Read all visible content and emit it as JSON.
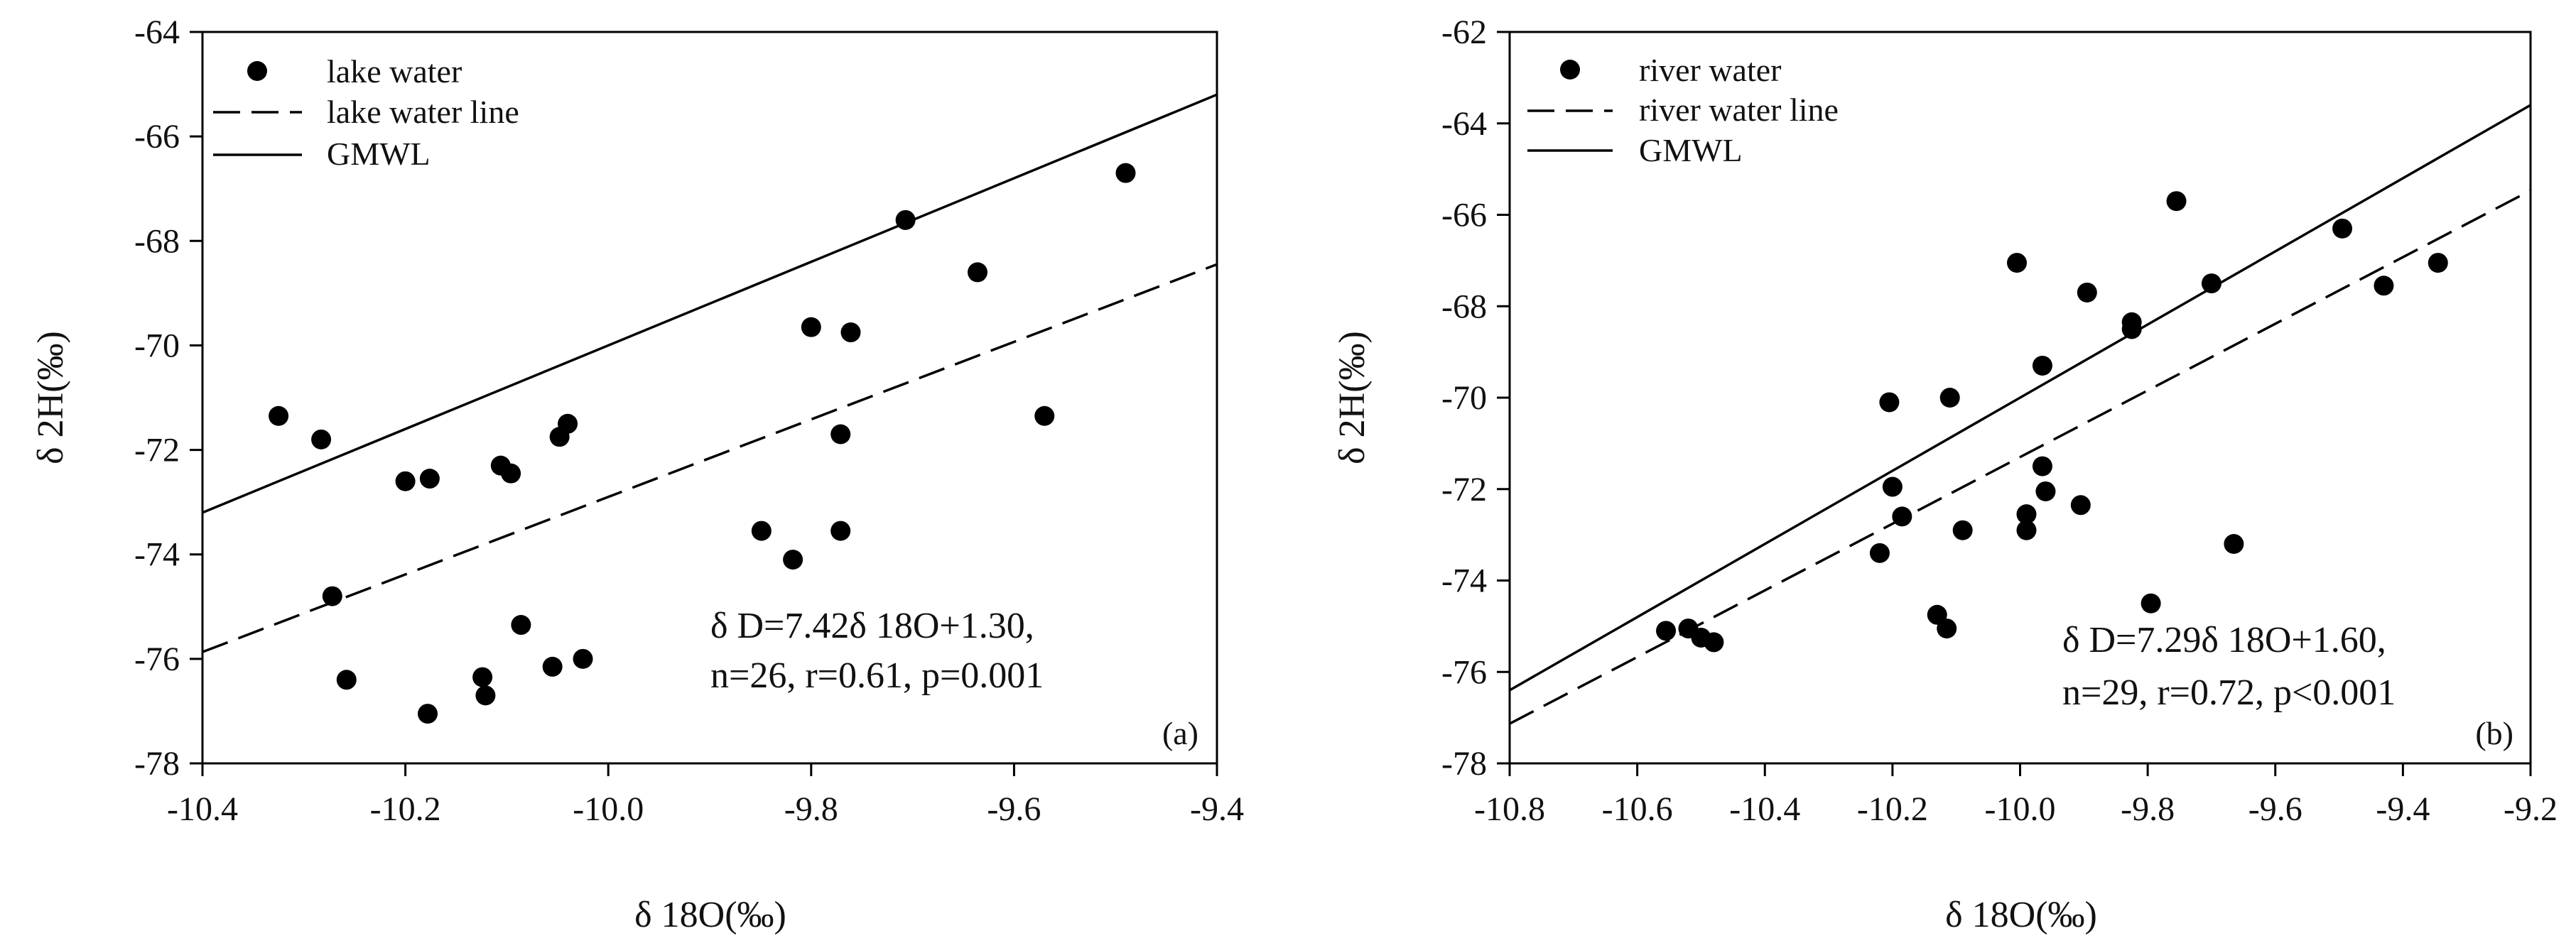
{
  "chart_data": [
    {
      "type": "scatter",
      "panel_label": "(a)",
      "xlabel": "δ 18O(‰)",
      "ylabel": "δ 2H(‰)",
      "xlim": [
        -10.4,
        -9.4
      ],
      "ylim": [
        -78,
        -64
      ],
      "xticks": [
        -10.4,
        -10.2,
        -10.0,
        -9.8,
        -9.6,
        -9.4
      ],
      "xtick_labels": [
        "-10.4",
        "-10.2",
        "-10.0",
        "-9.8",
        "-9.6",
        "-9.4"
      ],
      "yticks": [
        -78,
        -76,
        -74,
        -72,
        -70,
        -68,
        -66,
        -64
      ],
      "ytick_labels": [
        "-78",
        "-76",
        "-74",
        "-72",
        "-70",
        "-68",
        "-66",
        "-64"
      ],
      "legend": [
        "lake water",
        "lake water line",
        "GMWL"
      ],
      "equation_line1": "δ D=7.42δ 18O+1.30,",
      "equation_line2": "n=26, r=0.61, p=0.001",
      "fit_line": {
        "slope": 7.42,
        "intercept": 1.3
      },
      "gmwl": {
        "slope": 8,
        "intercept": 10
      },
      "points": [
        {
          "x": -10.325,
          "y": -71.35
        },
        {
          "x": -10.283,
          "y": -71.8
        },
        {
          "x": -10.272,
          "y": -74.8
        },
        {
          "x": -10.258,
          "y": -76.4
        },
        {
          "x": -10.2,
          "y": -72.6
        },
        {
          "x": -10.178,
          "y": -77.05
        },
        {
          "x": -10.176,
          "y": -72.55
        },
        {
          "x": -10.124,
          "y": -76.35
        },
        {
          "x": -10.121,
          "y": -76.7
        },
        {
          "x": -10.106,
          "y": -72.3
        },
        {
          "x": -10.096,
          "y": -72.45
        },
        {
          "x": -10.086,
          "y": -75.35
        },
        {
          "x": -10.055,
          "y": -76.15
        },
        {
          "x": -10.048,
          "y": -71.75
        },
        {
          "x": -10.04,
          "y": -71.5
        },
        {
          "x": -10.025,
          "y": -76.0
        },
        {
          "x": -9.849,
          "y": -73.55
        },
        {
          "x": -9.818,
          "y": -74.1
        },
        {
          "x": -9.8,
          "y": -69.65
        },
        {
          "x": -9.771,
          "y": -71.7
        },
        {
          "x": -9.771,
          "y": -73.55
        },
        {
          "x": -9.761,
          "y": -69.75
        },
        {
          "x": -9.707,
          "y": -67.6
        },
        {
          "x": -9.636,
          "y": -68.6
        },
        {
          "x": -9.57,
          "y": -71.35
        },
        {
          "x": -9.49,
          "y": -66.7
        }
      ]
    },
    {
      "type": "scatter",
      "panel_label": "(b)",
      "xlabel": "δ 18O(‰)",
      "ylabel": "δ 2H(‰)",
      "xlim": [
        -10.8,
        -9.2
      ],
      "ylim": [
        -78,
        -62
      ],
      "xticks": [
        -10.8,
        -10.6,
        -10.4,
        -10.2,
        -10.0,
        -9.8,
        -9.6,
        -9.4,
        -9.2
      ],
      "xtick_labels": [
        "-10.8",
        "-10.6",
        "-10.4",
        "-10.2",
        "-10.0",
        "-9.8",
        "-9.6",
        "-9.4",
        "-9.2"
      ],
      "yticks": [
        -78,
        -76,
        -74,
        -72,
        -70,
        -68,
        -66,
        -64,
        -62
      ],
      "ytick_labels": [
        "-78",
        "-76",
        "-74",
        "-72",
        "-70",
        "-68",
        "-66",
        "-64",
        "-62"
      ],
      "legend": [
        "river water",
        "river water line",
        "GMWL"
      ],
      "equation_line1": "δ D=7.29δ 18O+1.60,",
      "equation_line2": "n=29, r=0.72, p<0.001",
      "fit_line": {
        "slope": 7.29,
        "intercept": 1.6
      },
      "gmwl": {
        "slope": 8,
        "intercept": 10
      },
      "points": [
        {
          "x": -10.555,
          "y": -75.1
        },
        {
          "x": -10.52,
          "y": -75.05
        },
        {
          "x": -10.5,
          "y": -75.25
        },
        {
          "x": -10.48,
          "y": -75.35
        },
        {
          "x": -10.22,
          "y": -73.4
        },
        {
          "x": -10.205,
          "y": -70.1
        },
        {
          "x": -10.2,
          "y": -71.95
        },
        {
          "x": -10.185,
          "y": -72.6
        },
        {
          "x": -10.13,
          "y": -74.75
        },
        {
          "x": -10.115,
          "y": -75.05
        },
        {
          "x": -10.11,
          "y": -70.0
        },
        {
          "x": -10.09,
          "y": -72.9
        },
        {
          "x": -10.005,
          "y": -67.05
        },
        {
          "x": -9.99,
          "y": -72.55
        },
        {
          "x": -9.99,
          "y": -72.9
        },
        {
          "x": -9.965,
          "y": -69.3
        },
        {
          "x": -9.965,
          "y": -71.5
        },
        {
          "x": -9.96,
          "y": -72.05
        },
        {
          "x": -9.905,
          "y": -72.35
        },
        {
          "x": -9.895,
          "y": -67.7
        },
        {
          "x": -9.825,
          "y": -68.35
        },
        {
          "x": -9.825,
          "y": -68.5
        },
        {
          "x": -9.795,
          "y": -74.5
        },
        {
          "x": -9.755,
          "y": -65.7
        },
        {
          "x": -9.7,
          "y": -67.5
        },
        {
          "x": -9.665,
          "y": -73.2
        },
        {
          "x": -9.495,
          "y": -66.3
        },
        {
          "x": -9.43,
          "y": -67.55
        },
        {
          "x": -9.345,
          "y": -67.05
        }
      ]
    }
  ]
}
